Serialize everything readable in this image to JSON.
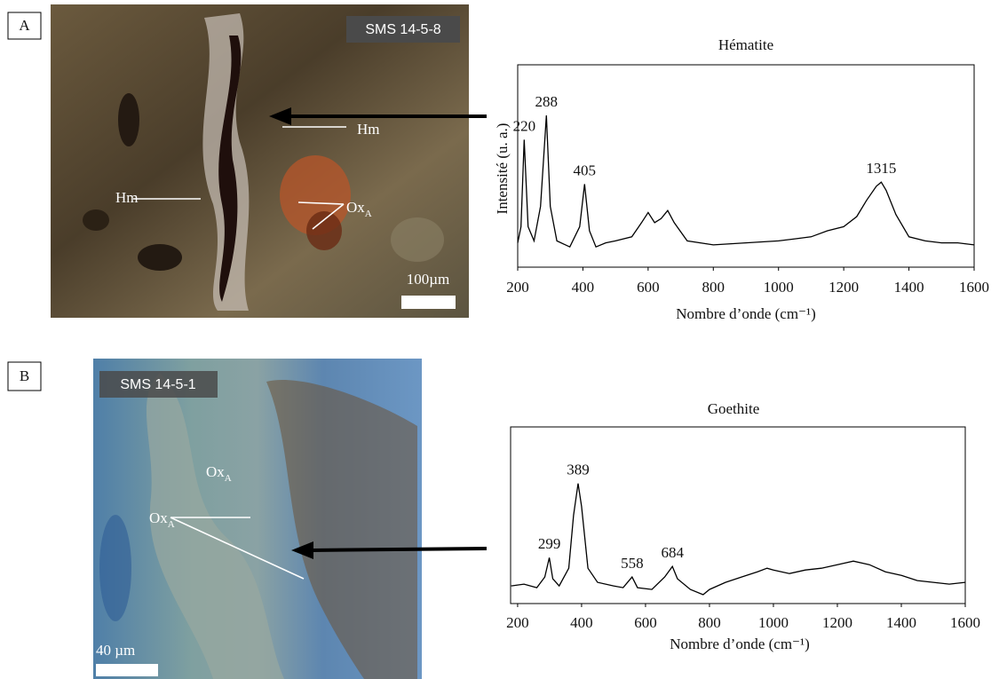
{
  "panels": [
    {
      "label": "A",
      "sample": "SMS 14-5-8",
      "scale": "100µm",
      "annotations": [
        {
          "text": "Hm"
        },
        {
          "text": "Hm"
        },
        {
          "text": "Ox",
          "sub": "A"
        }
      ]
    },
    {
      "label": "B",
      "sample": "SMS 14-5-1",
      "scale": "40 µm",
      "annotations": [
        {
          "text": "Ox",
          "sub": "A"
        },
        {
          "text": "Ox",
          "sub": "A"
        }
      ]
    }
  ],
  "chart_data": [
    {
      "type": "line",
      "title": "Hématite",
      "xlabel": "Nombre d’onde (cm⁻¹)",
      "ylabel": "Intensité (u. a.)",
      "xlim": [
        200,
        1600
      ],
      "xticks": [
        200,
        400,
        600,
        800,
        1000,
        1200,
        1400,
        1600
      ],
      "ylim": [
        0,
        100
      ],
      "color": "#000000",
      "x": [
        200,
        210,
        220,
        232,
        250,
        270,
        288,
        300,
        320,
        360,
        390,
        405,
        420,
        440,
        470,
        500,
        550,
        580,
        600,
        620,
        640,
        660,
        680,
        720,
        800,
        900,
        1000,
        1050,
        1100,
        1150,
        1200,
        1240,
        1270,
        1300,
        1315,
        1330,
        1360,
        1400,
        1450,
        1500,
        1550,
        1600
      ],
      "values": [
        12,
        20,
        63,
        20,
        13,
        30,
        75,
        30,
        13,
        10,
        20,
        41,
        18,
        10,
        12,
        13,
        15,
        22,
        27,
        22,
        24,
        28,
        22,
        13,
        11,
        12,
        13,
        14,
        15,
        18,
        20,
        25,
        33,
        40,
        42,
        38,
        26,
        15,
        13,
        12,
        12,
        11
      ],
      "peaks": [
        220,
        288,
        405,
        1315
      ]
    },
    {
      "type": "line",
      "title": "Goethite",
      "xlabel": "Nombre d’onde (cm⁻¹)",
      "xlim": [
        178,
        1600
      ],
      "xticks": [
        200,
        400,
        600,
        800,
        1000,
        1200,
        1400,
        1600
      ],
      "ylim": [
        0,
        100
      ],
      "color": "#000000",
      "x": [
        180,
        220,
        260,
        285,
        299,
        310,
        330,
        360,
        375,
        389,
        400,
        420,
        450,
        500,
        530,
        558,
        575,
        620,
        660,
        684,
        700,
        740,
        780,
        800,
        850,
        900,
        950,
        980,
        1000,
        1050,
        1100,
        1150,
        1200,
        1250,
        1300,
        1350,
        1400,
        1450,
        1500,
        1550,
        1600
      ],
      "values": [
        10,
        11,
        9,
        15,
        26,
        14,
        10,
        20,
        50,
        68,
        55,
        20,
        12,
        10,
        9,
        15,
        9,
        8,
        15,
        21,
        14,
        8,
        5,
        8,
        12,
        15,
        18,
        20,
        19,
        17,
        19,
        20,
        22,
        24,
        22,
        18,
        16,
        13,
        12,
        11,
        12
      ],
      "peaks": [
        299,
        389,
        558,
        684
      ]
    }
  ]
}
